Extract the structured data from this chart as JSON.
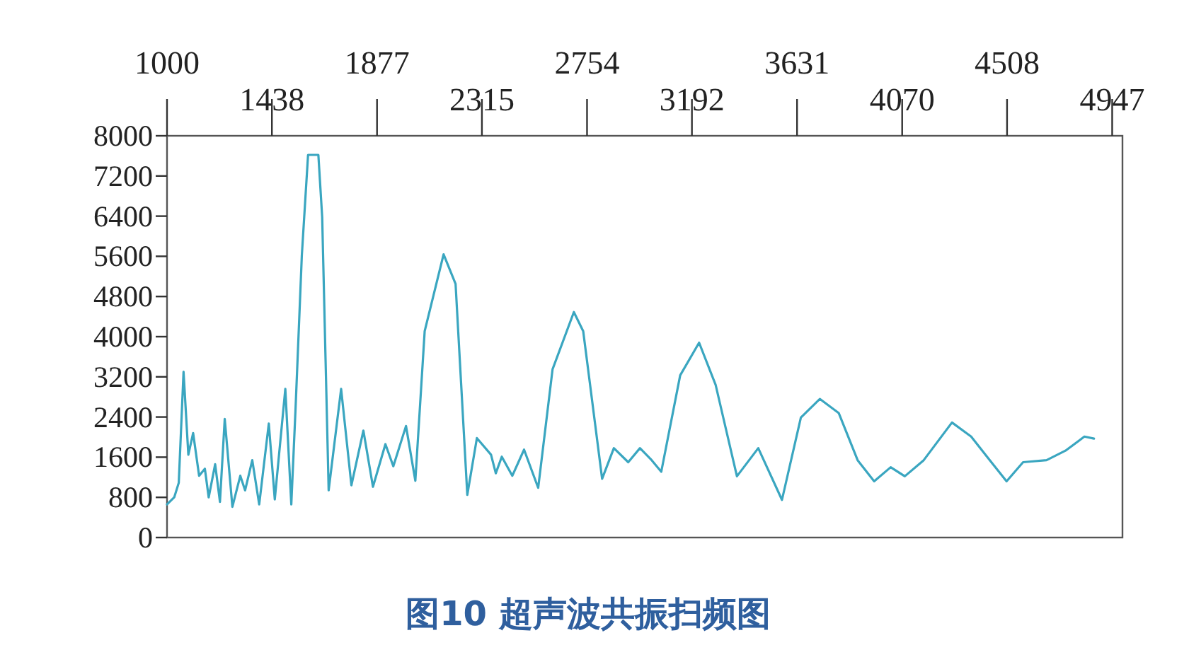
{
  "chart_data": {
    "type": "line",
    "title": "图10  超声波共振扫频图",
    "x": [
      1000,
      1030,
      1049,
      1069,
      1089,
      1109,
      1134,
      1158,
      1174,
      1201,
      1221,
      1241,
      1273,
      1306,
      1326,
      1356,
      1385,
      1425,
      1450,
      1494,
      1519,
      1537,
      1563,
      1589,
      1632,
      1648,
      1675,
      1727,
      1770,
      1820,
      1860,
      1912,
      1945,
      1998,
      2037,
      2076,
      2155,
      2205,
      2254,
      2294,
      2353,
      2373,
      2398,
      2442,
      2491,
      2550,
      2610,
      2699,
      2738,
      2817,
      2866,
      2926,
      2975,
      3024,
      3064,
      3143,
      3222,
      3291,
      3380,
      3469,
      3568,
      3647,
      3726,
      3805,
      3884,
      3953,
      4022,
      4081,
      4160,
      4278,
      4358,
      4436,
      4506,
      4575,
      4673,
      4752,
      4831,
      4871
    ],
    "series": [
      {
        "color": "#3aa6c0",
        "values": [
          660,
          800,
          1090,
          3300,
          1650,
          2080,
          1230,
          1370,
          800,
          1460,
          710,
          2360,
          610,
          1230,
          940,
          1540,
          660,
          2270,
          760,
          2960,
          660,
          2600,
          5620,
          7620,
          7620,
          6380,
          940,
          2960,
          1040,
          2130,
          1010,
          1860,
          1420,
          2220,
          1130,
          4110,
          5640,
          5050,
          850,
          1980,
          1650,
          1280,
          1610,
          1230,
          1750,
          990,
          3350,
          4490,
          4110,
          1170,
          1780,
          1500,
          1780,
          1540,
          1310,
          3230,
          3880,
          3040,
          1220,
          1780,
          750,
          2390,
          2760,
          2480,
          1540,
          1120,
          1400,
          1220,
          1540,
          2290,
          2010,
          1540,
          1120,
          1500,
          1540,
          1730,
          2010,
          1970
        ]
      }
    ],
    "xlim": [
      1000,
      4990
    ],
    "xticks": [
      1438,
      2315,
      3192,
      4070,
      4947
    ],
    "x2lim": [
      1000,
      4990
    ],
    "x2ticks": [
      1000,
      1877,
      2754,
      3631,
      4508
    ],
    "ylim": [
      0,
      8000
    ],
    "yticks": [
      0,
      800,
      1600,
      2400,
      3200,
      4000,
      4800,
      5600,
      6400,
      7200,
      8000
    ],
    "grid": false,
    "marker": "none",
    "line_style": "solid"
  }
}
